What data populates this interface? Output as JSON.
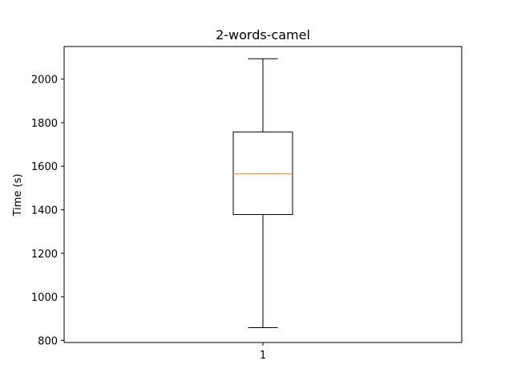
{
  "chart_data": {
    "type": "boxplot",
    "title": "2-words-camel",
    "xlabel": "",
    "ylabel": "Time (s)",
    "ylim": [
      790,
      2150
    ],
    "yticks": [
      800,
      1000,
      1200,
      1400,
      1600,
      1800,
      2000
    ],
    "categories": [
      "1"
    ],
    "boxes": [
      {
        "category": "1",
        "whisker_low": 858,
        "q1": 1378,
        "median": 1565,
        "q3": 1757,
        "whisker_high": 2094
      }
    ],
    "grid": false,
    "colors": {
      "box": "#000000",
      "median": "#ff7f0e",
      "whisker": "#000000",
      "frame": "#000000"
    }
  }
}
